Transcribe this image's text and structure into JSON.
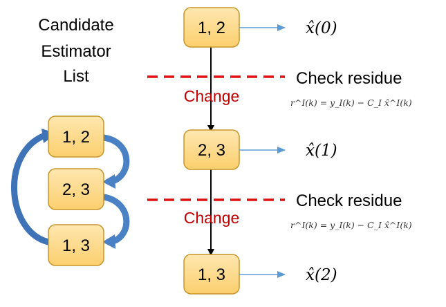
{
  "list_title": [
    "Candidate",
    "Estimator",
    "List"
  ],
  "cycle_items": [
    "1, 2",
    "2, 3",
    "1, 3"
  ],
  "timeline": [
    {
      "label": "1, 2",
      "estimate": "x̂(0)"
    },
    {
      "label": "2, 3",
      "estimate": "x̂(1)"
    },
    {
      "label": "1, 3",
      "estimate": "x̂(2)"
    }
  ],
  "transitions": [
    {
      "check": "Check residue",
      "change": "Change",
      "formula": "r^I(k) = y_I(k) − C_I x̂^I(k)"
    },
    {
      "check": "Check residue",
      "change": "Change",
      "formula": "r^I(k) = y_I(k) − C_I x̂^I(k)"
    }
  ],
  "colors": {
    "box_fill": "#fdd98a",
    "box_stroke": "#c8952c",
    "dashed_line": "#e01010",
    "change_text": "#c00000",
    "cycle_arrow": "#4f86c6",
    "estimate_arrow": "#5b9bd5"
  }
}
